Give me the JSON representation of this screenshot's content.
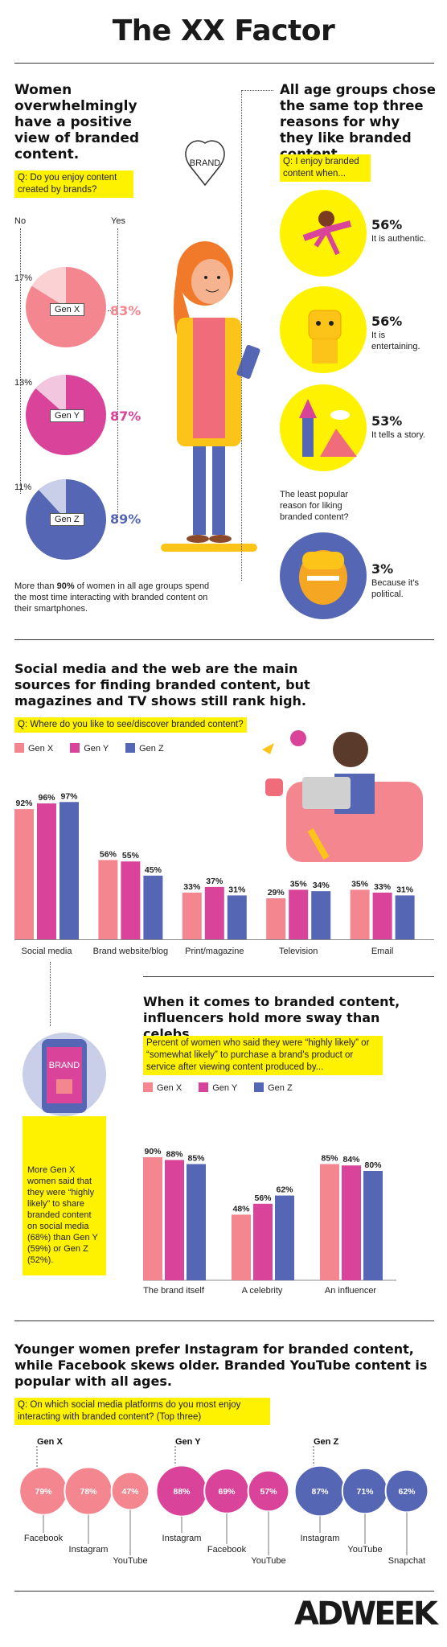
{
  "header": {
    "title": "The XX Factor"
  },
  "section1": {
    "heading": "Women overwhelmingly have a positive view of branded content.",
    "question": "Q: Do you enjoy content created by brands?",
    "no_label": "No",
    "yes_label": "Yes",
    "pies": [
      {
        "name": "Gen X",
        "no": "17%",
        "yes": "83%",
        "yes_value": 83,
        "color": "#f4868f",
        "light": "#fbd1d4"
      },
      {
        "name": "Gen Y",
        "no": "13%",
        "yes": "87%",
        "yes_value": 87,
        "color": "#d9449a",
        "light": "#f3c6df"
      },
      {
        "name": "Gen Z",
        "no": "11%",
        "yes": "89%",
        "yes_value": 89,
        "color": "#5566b4",
        "light": "#c9cfe8"
      }
    ],
    "footnote_pre": "More than ",
    "footnote_bold": "90%",
    "footnote_post": " of women in all age groups spend the most time interacting with branded content on their smartphones.",
    "brand_heart": "BRAND"
  },
  "section1_right": {
    "heading": "All age groups chose the same top three reasons for why they like branded content.",
    "question": "Q: I enjoy branded content when...",
    "reasons": [
      {
        "pct": "56%",
        "text": "It is authentic."
      },
      {
        "pct": "56%",
        "text": "It is entertaining."
      },
      {
        "pct": "53%",
        "text": "It tells a story."
      }
    ],
    "least_label": "The least popular reason for liking branded content?",
    "least_pct": "3%",
    "least_text": "Because it's political."
  },
  "section2": {
    "heading": "Social media and the web are the main sources for finding branded content, but magazines and TV shows still rank high.",
    "question": "Q: Where do you like to see/discover branded content?",
    "legend": [
      "Gen X",
      "Gen Y",
      "Gen Z"
    ],
    "colors": [
      "#f4868f",
      "#d9449a",
      "#5566b4"
    ],
    "chart_data": {
      "type": "bar",
      "categories": [
        "Social media",
        "Brand website/blog",
        "Print/magazine",
        "Television",
        "Email"
      ],
      "series": [
        {
          "name": "Gen X",
          "values": [
            92,
            56,
            33,
            29,
            35
          ]
        },
        {
          "name": "Gen Y",
          "values": [
            96,
            55,
            37,
            35,
            33
          ]
        },
        {
          "name": "Gen Z",
          "values": [
            97,
            45,
            31,
            34,
            31
          ]
        }
      ]
    }
  },
  "section3": {
    "heading": "When it comes to branded content, influencers hold more sway than celebs.",
    "question": "Percent of women who said they were “highly likely” or “somewhat likely” to purchase a brand's product or service after viewing content produced by...",
    "legend": [
      "Gen X",
      "Gen Y",
      "Gen Z"
    ],
    "side_note": "More Gen X women said that they were “highly likely” to share branded content on social media (68%) than Gen Y (59%) or Gen Z (52%).",
    "phone_brand": "BRAND",
    "chart_data": {
      "type": "bar",
      "categories": [
        "The brand itself",
        "A celebrity",
        "An influencer"
      ],
      "series": [
        {
          "name": "Gen X",
          "values": [
            90,
            48,
            85
          ]
        },
        {
          "name": "Gen Y",
          "values": [
            88,
            56,
            84
          ]
        },
        {
          "name": "Gen Z",
          "values": [
            85,
            62,
            80
          ]
        }
      ]
    }
  },
  "section4": {
    "heading": "Younger women prefer Instagram for branded content, while Facebook skews older. Branded YouTube content is popular with all ages.",
    "question": "Q: On which social media platforms do you most enjoy interacting with branded content? (Top three)",
    "chart_data": {
      "type": "bubble",
      "groups": [
        {
          "name": "Gen X",
          "items": [
            {
              "platform": "Facebook",
              "value": 79
            },
            {
              "platform": "Instagram",
              "value": 78
            },
            {
              "platform": "YouTube",
              "value": 47
            }
          ]
        },
        {
          "name": "Gen Y",
          "items": [
            {
              "platform": "Instagram",
              "value": 88
            },
            {
              "platform": "Facebook",
              "value": 69
            },
            {
              "platform": "YouTube",
              "value": 57
            }
          ]
        },
        {
          "name": "Gen Z",
          "items": [
            {
              "platform": "Instagram",
              "value": 87
            },
            {
              "platform": "YouTube",
              "value": 71
            },
            {
              "platform": "Snapchat",
              "value": 62
            }
          ]
        }
      ]
    }
  },
  "footer": {
    "logo": "ADWEEK"
  }
}
